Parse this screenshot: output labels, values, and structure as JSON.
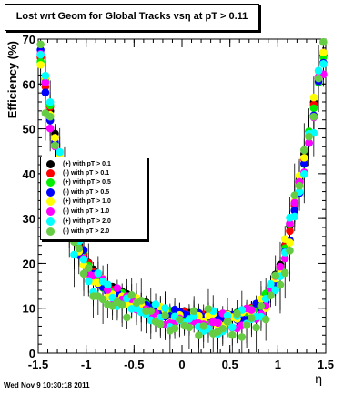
{
  "chart_data": {
    "type": "scatter",
    "title": "Lost wrt Geom for Global Tracks vsη at pT > 0.11",
    "xlabel": "η",
    "ylabel": "Efficiency (%)",
    "xlim": [
      -1.5,
      1.5
    ],
    "ylim": [
      0,
      70
    ],
    "x_ticks": [
      -1.5,
      -1,
      -0.5,
      0,
      0.5,
      1,
      1.5
    ],
    "x_tick_labels": [
      "-1.5",
      "-1",
      "-0.5",
      "0",
      "0.5",
      "1",
      "1.5"
    ],
    "y_ticks": [
      0,
      10,
      20,
      30,
      40,
      50,
      60,
      70
    ],
    "y_tick_labels": [
      "0",
      "10",
      "20",
      "30",
      "40",
      "50",
      "60",
      "70"
    ],
    "grid": false,
    "legend_position": "left-middle",
    "series": [
      {
        "name": "(+) with pT > 0.1",
        "color": "#000000",
        "offset": 0.6,
        "spread": 0.4
      },
      {
        "name": "(-) with pT > 0.1",
        "color": "#ff0000",
        "offset": 0.3,
        "spread": 0.6
      },
      {
        "name": "(+) with pT > 0.5",
        "color": "#00ee00",
        "offset": 0.0,
        "spread": 1.0
      },
      {
        "name": "(-) with pT > 0.5",
        "color": "#0000ff",
        "offset": -0.3,
        "spread": 1.3
      },
      {
        "name": "(+) with pT > 1.0",
        "color": "#ffff00",
        "offset": -0.6,
        "spread": 1.8
      },
      {
        "name": "(-) with pT > 1.0",
        "color": "#ff00ff",
        "offset": -0.9,
        "spread": 2.2
      },
      {
        "name": "(+) with pT > 2.0",
        "color": "#00ffff",
        "offset": -1.2,
        "spread": 3.0
      },
      {
        "name": "(-) with pT > 2.0",
        "color": "#66cc44",
        "offset": -1.5,
        "spread": 3.6
      }
    ],
    "trend": {
      "x": [
        -1.5,
        -1.4,
        -1.3,
        -1.2,
        -1.1,
        -1.0,
        -0.9,
        -0.8,
        -0.7,
        -0.6,
        -0.5,
        -0.4,
        -0.3,
        -0.2,
        -0.1,
        0.0,
        0.1,
        0.2,
        0.3,
        0.4,
        0.5,
        0.6,
        0.7,
        0.8,
        0.9,
        1.0,
        1.1,
        1.2,
        1.3,
        1.4,
        1.5
      ],
      "y": [
        69,
        57,
        45,
        33,
        25,
        20,
        17,
        15,
        13.5,
        12.5,
        11.5,
        10.5,
        9.8,
        9.2,
        8.8,
        8.5,
        8.2,
        8.0,
        7.8,
        7.7,
        7.8,
        8.2,
        9,
        10.5,
        13,
        18,
        25,
        35,
        46,
        58,
        69
      ]
    }
  },
  "timestamp": "Wed Nov  9 10:30:18 2011"
}
